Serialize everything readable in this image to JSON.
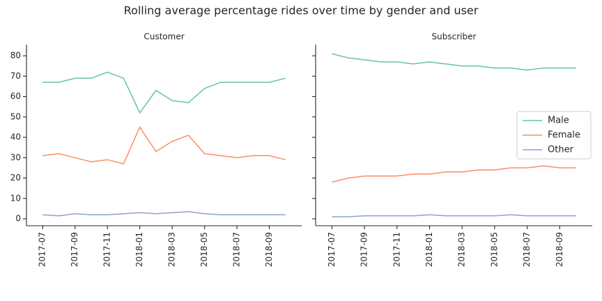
{
  "title": "Rolling average percentage rides over time by gender and user",
  "chart_data": [
    {
      "type": "line",
      "title": "Customer",
      "x": [
        "2017-07",
        "2017-08",
        "2017-09",
        "2017-10",
        "2017-11",
        "2017-12",
        "2018-01",
        "2018-02",
        "2018-03",
        "2018-04",
        "2018-05",
        "2018-06",
        "2018-07",
        "2018-08",
        "2018-09",
        "2018-10"
      ],
      "xlim": [
        "2017-06",
        "2018-11"
      ],
      "xticks": [
        "2017-07",
        "2017-09",
        "2017-11",
        "2018-01",
        "2018-03",
        "2018-05",
        "2018-07",
        "2018-09"
      ],
      "ylim": [
        -3.4,
        85.5
      ],
      "yticks": [
        0,
        10,
        20,
        30,
        40,
        50,
        60,
        70,
        80
      ],
      "ytick_labels": true,
      "series": [
        {
          "name": "Male",
          "color": "#66c2a5",
          "values": [
            67,
            67,
            69,
            69,
            72,
            69,
            52,
            63,
            58,
            57,
            64,
            67,
            67,
            67,
            67,
            69
          ]
        },
        {
          "name": "Female",
          "color": "#fc8d62",
          "values": [
            31,
            32,
            30,
            28,
            29,
            27,
            45,
            33,
            38,
            41,
            32,
            31,
            30,
            31,
            31,
            29
          ]
        },
        {
          "name": "Other",
          "color": "#8da0cb",
          "values": [
            2,
            1.5,
            2.5,
            2,
            2,
            2.5,
            3,
            2.5,
            3,
            3.5,
            2.5,
            2,
            2,
            2,
            2,
            2
          ]
        }
      ]
    },
    {
      "type": "line",
      "title": "Subscriber",
      "x": [
        "2017-07",
        "2017-08",
        "2017-09",
        "2017-10",
        "2017-11",
        "2017-12",
        "2018-01",
        "2018-02",
        "2018-03",
        "2018-04",
        "2018-05",
        "2018-06",
        "2018-07",
        "2018-08",
        "2018-09",
        "2018-10"
      ],
      "xlim": [
        "2017-06",
        "2018-11"
      ],
      "xticks": [
        "2017-07",
        "2017-09",
        "2017-11",
        "2018-01",
        "2018-03",
        "2018-05",
        "2018-07",
        "2018-09"
      ],
      "ylim": [
        -3.4,
        85.5
      ],
      "yticks": [
        0,
        10,
        20,
        30,
        40,
        50,
        60,
        70,
        80
      ],
      "ytick_labels": false,
      "legend": "center right",
      "series": [
        {
          "name": "Male",
          "color": "#66c2a5",
          "values": [
            81,
            79,
            78,
            77,
            77,
            76,
            77,
            76,
            75,
            75,
            74,
            74,
            73,
            74,
            74,
            74
          ]
        },
        {
          "name": "Female",
          "color": "#fc8d62",
          "values": [
            18,
            20,
            21,
            21,
            21,
            22,
            22,
            23,
            23,
            24,
            24,
            25,
            25,
            26,
            25,
            25
          ]
        },
        {
          "name": "Other",
          "color": "#8da0cb",
          "values": [
            1,
            1,
            1.5,
            1.5,
            1.5,
            1.5,
            2,
            1.5,
            1.5,
            1.5,
            1.5,
            2,
            1.5,
            1.5,
            1.5,
            1.5
          ]
        }
      ]
    }
  ]
}
